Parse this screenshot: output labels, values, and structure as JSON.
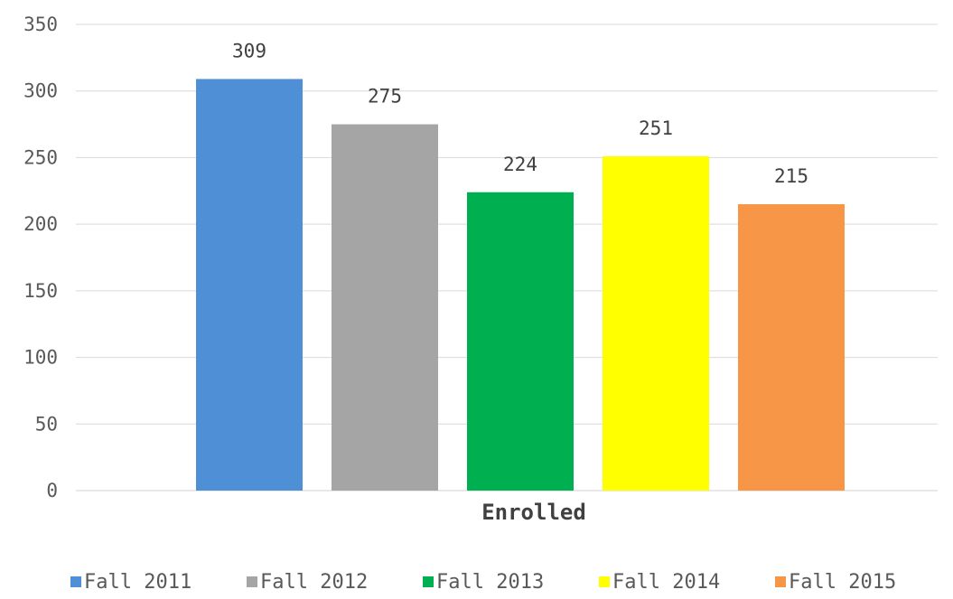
{
  "chart_data": {
    "type": "bar",
    "categories": [
      "Enrolled"
    ],
    "series": [
      {
        "name": "Fall 2011",
        "values": [
          309
        ],
        "color": "#4f8fd6"
      },
      {
        "name": "Fall 2012",
        "values": [
          275
        ],
        "color": "#a5a5a5"
      },
      {
        "name": "Fall 2013",
        "values": [
          224
        ],
        "color": "#00b050"
      },
      {
        "name": "Fall 2014",
        "values": [
          251
        ],
        "color": "#ffff00"
      },
      {
        "name": "Fall 2015",
        "values": [
          215
        ],
        "color": "#f79646"
      }
    ],
    "ylim": [
      0,
      350
    ],
    "yticks": [
      0,
      50,
      100,
      150,
      200,
      250,
      300,
      350
    ],
    "grid": true,
    "legend": "bottom",
    "data_labels": true
  }
}
